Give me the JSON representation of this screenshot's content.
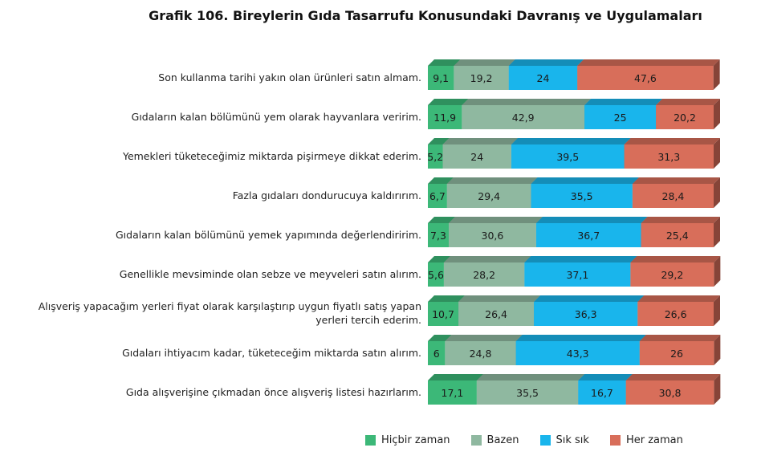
{
  "colors": {
    "hicbir": "#3cb878",
    "bazen": "#8fb8a0",
    "sik": "#19b5ec",
    "her": "#d86e5a"
  },
  "chart_data": {
    "type": "bar",
    "orientation": "horizontal",
    "stacked": true,
    "title": "Grafik 106. Bireylerin Gıda Tasarrufu Konusundaki Davranış ve Uygulamaları",
    "categories": [
      "Son kullanma tarihi yakın olan ürünleri satın almam.",
      "Gıdaların kalan bölümünü yem olarak hayvanlara veririm.",
      "Yemekleri tüketeceğimiz miktarda pişirmeye dikkat ederim.",
      "Fazla gıdaları dondurucuya kaldırırım.",
      "Gıdaların kalan bölümünü yemek yapımında değerlendiririm.",
      "Genellikle mevsiminde olan sebze ve meyveleri satın alırım.",
      "Alışveriş yapacağım yerleri fiyat olarak karşılaştırıp uygun fiyatlı satış yapan yerleri tercih ederim.",
      "Gıdaları ihtiyacım kadar, tüketeceğim miktarda satın alırım.",
      "Gıda alışverişine çıkmadan önce alışveriş listesi hazırlarım."
    ],
    "series": [
      {
        "name": "Hiçbir zaman",
        "values": [
          9.1,
          11.9,
          5.2,
          6.7,
          7.3,
          5.6,
          10.7,
          6,
          17.1
        ]
      },
      {
        "name": "Bazen",
        "values": [
          19.2,
          42.9,
          24,
          29.4,
          30.6,
          28.2,
          26.4,
          24.8,
          35.5
        ]
      },
      {
        "name": "Sık sık",
        "values": [
          24,
          25,
          39.5,
          35.5,
          36.7,
          37.1,
          36.3,
          43.3,
          16.7
        ]
      },
      {
        "name": "Her zaman",
        "values": [
          47.6,
          20.2,
          31.3,
          28.4,
          25.4,
          29.2,
          26.6,
          26,
          30.8
        ]
      }
    ],
    "value_labels": [
      [
        "9,1",
        "19,2",
        "24",
        "47,6"
      ],
      [
        "11,9",
        "42,9",
        "25",
        "20,2"
      ],
      [
        "5,2",
        "24",
        "39,5",
        "31,3"
      ],
      [
        "6,7",
        "29,4",
        "35,5",
        "28,4"
      ],
      [
        "7,3",
        "30,6",
        "36,7",
        "25,4"
      ],
      [
        "5,6",
        "28,2",
        "37,1",
        "29,2"
      ],
      [
        "10,7",
        "26,4",
        "36,3",
        "26,6"
      ],
      [
        "6",
        "24,8",
        "43,3",
        "26"
      ],
      [
        "17,1",
        "35,5",
        "16,7",
        "30,8"
      ]
    ],
    "xlim": [
      0,
      100
    ],
    "legend_position": "bottom"
  }
}
